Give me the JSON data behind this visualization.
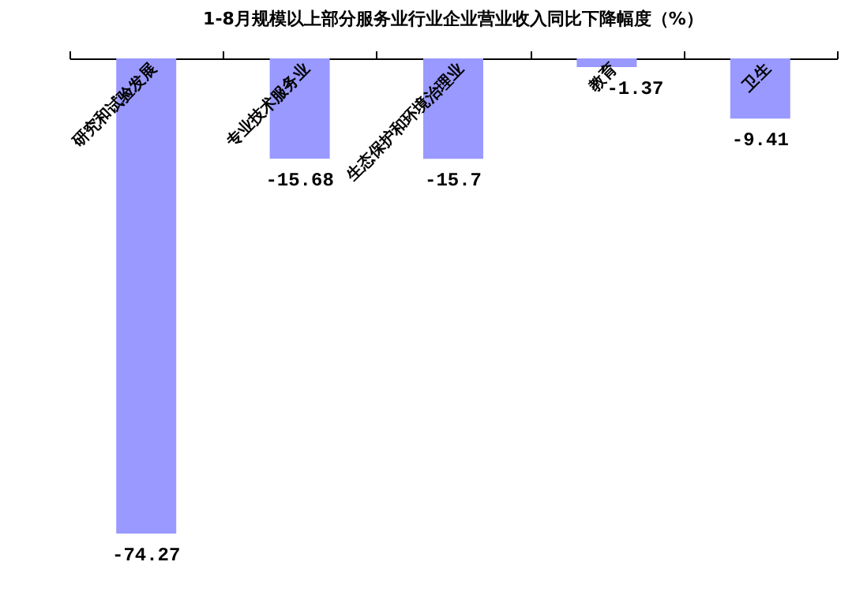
{
  "chart_data": {
    "type": "bar",
    "title": "1-8月规模以上部分服务业行业企业营业收入同比下降幅度（%）",
    "categories": [
      "研究和试验发展",
      "专业技术服务业",
      "生态保护和环境治理业",
      "教育",
      "卫生"
    ],
    "values": [
      -74.27,
      -15.68,
      -15.7,
      -1.37,
      -9.41
    ],
    "color": "#9999ff",
    "data_labels": true
  }
}
